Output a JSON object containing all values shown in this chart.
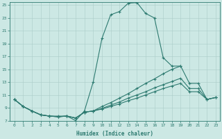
{
  "xlabel": "Humidex (Indice chaleur)",
  "xlim": [
    -0.5,
    23.5
  ],
  "ylim": [
    7,
    25.5
  ],
  "xticks": [
    0,
    1,
    2,
    3,
    4,
    5,
    6,
    7,
    8,
    9,
    10,
    11,
    12,
    13,
    14,
    15,
    16,
    17,
    18,
    19,
    20,
    21,
    22,
    23
  ],
  "yticks": [
    7,
    9,
    11,
    13,
    15,
    17,
    19,
    21,
    23,
    25
  ],
  "color": "#2d7a70",
  "bg_color": "#cce8e4",
  "grid_color": "#aaccc8",
  "line1_x": [
    0,
    1,
    2,
    3,
    4,
    5,
    6,
    7,
    8,
    9,
    10,
    11,
    12,
    13,
    14,
    15,
    16,
    17,
    18,
    19
  ],
  "line1_y": [
    10.3,
    9.2,
    8.5,
    7.9,
    7.7,
    7.7,
    7.7,
    7.0,
    8.5,
    13.0,
    19.8,
    23.5,
    24.0,
    25.3,
    25.4,
    23.7,
    23.0,
    16.8,
    15.5,
    15.5
  ],
  "line2_x": [
    0,
    1,
    2,
    3,
    4,
    5,
    6,
    7,
    8,
    9,
    10,
    11,
    12,
    13,
    14,
    15,
    16,
    17,
    18,
    19,
    20,
    21,
    22,
    23
  ],
  "line2_y": [
    10.3,
    9.2,
    8.5,
    7.9,
    7.7,
    7.6,
    7.7,
    7.4,
    8.3,
    8.5,
    9.2,
    9.8,
    10.5,
    11.2,
    12.0,
    12.8,
    13.5,
    14.3,
    15.0,
    15.5,
    12.8,
    12.8,
    10.3,
    10.6
  ],
  "line3_x": [
    0,
    1,
    2,
    3,
    4,
    5,
    6,
    7,
    8,
    9,
    10,
    11,
    12,
    13,
    14,
    15,
    16,
    17,
    18,
    19,
    20,
    21,
    22,
    23
  ],
  "line3_y": [
    10.3,
    9.2,
    8.5,
    7.9,
    7.7,
    7.6,
    7.7,
    7.4,
    8.3,
    8.5,
    8.9,
    9.4,
    9.9,
    10.5,
    11.0,
    11.5,
    12.1,
    12.6,
    13.1,
    13.6,
    12.0,
    12.0,
    10.3,
    10.6
  ],
  "line4_x": [
    0,
    1,
    2,
    3,
    4,
    5,
    6,
    7,
    8,
    9,
    10,
    11,
    12,
    13,
    14,
    15,
    16,
    17,
    18,
    19,
    20,
    21,
    22,
    23
  ],
  "line4_y": [
    10.3,
    9.2,
    8.5,
    7.9,
    7.7,
    7.6,
    7.7,
    7.4,
    8.3,
    8.5,
    8.8,
    9.2,
    9.6,
    10.1,
    10.5,
    11.0,
    11.5,
    12.0,
    12.4,
    12.8,
    11.5,
    11.5,
    10.3,
    10.6
  ]
}
